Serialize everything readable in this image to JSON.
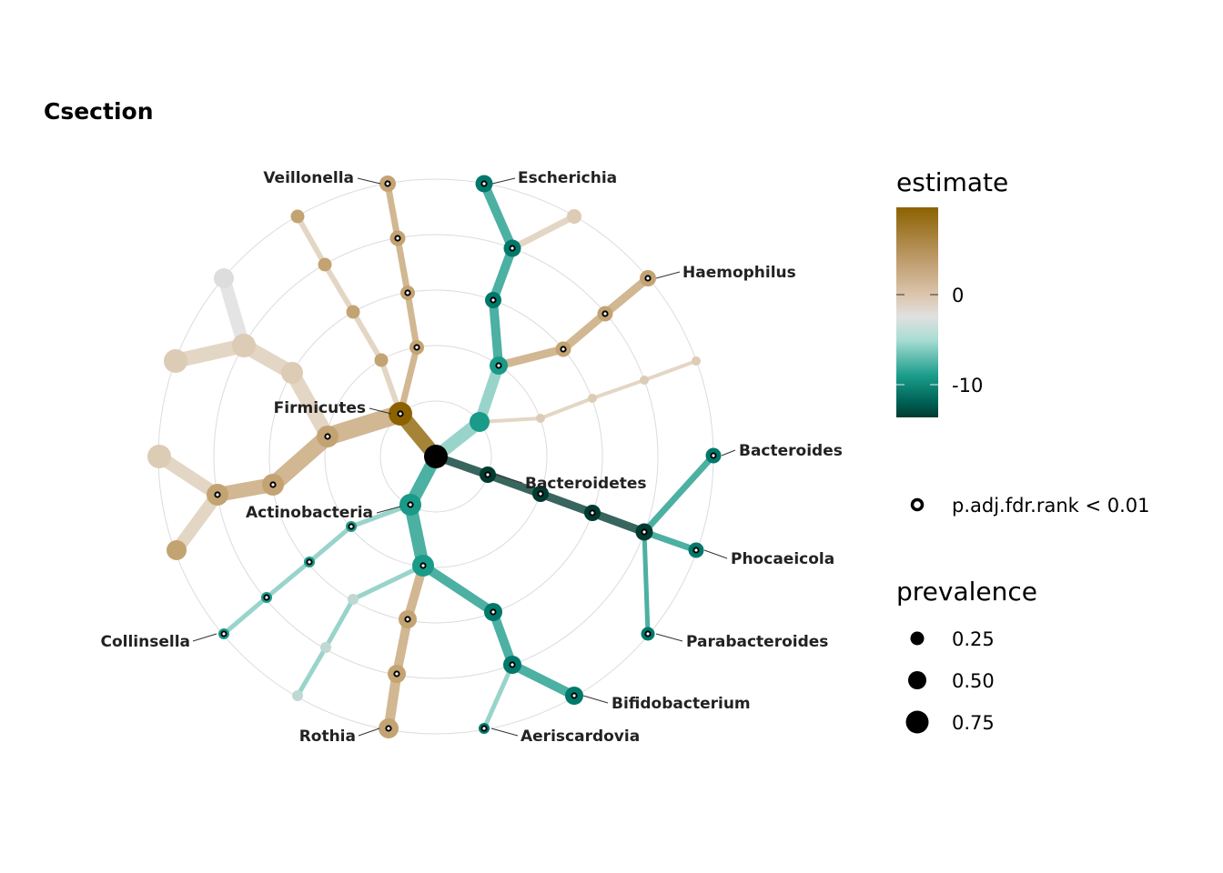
{
  "title": "Csection",
  "colors": {
    "positive_max": "#8c6200",
    "positive_mid": "#c4a373",
    "positive_light": "#dccbb5",
    "zero": "#dedede",
    "negative_light": "#7cc8bc",
    "negative_mid": "#1a9a88",
    "negative_strong": "#00796b",
    "negative_max": "#003a31",
    "root": "#000000"
  },
  "legend": {
    "estimate_title": "estimate",
    "estimate_ticks": [
      "0",
      "-10"
    ],
    "significance_label": "p.adj.fdr.rank < 0.01",
    "prevalence_title": "prevalence",
    "prevalence_values": [
      "0.25",
      "0.50",
      "0.75"
    ]
  },
  "chart_data": {
    "type": "radial-tree",
    "title": "Csection",
    "root": "root",
    "labeled_taxa": [
      {
        "name": "Veillonella",
        "significant": true
      },
      {
        "name": "Escherichia",
        "significant": true
      },
      {
        "name": "Haemophilus",
        "significant": true
      },
      {
        "name": "Firmicutes",
        "significant": true
      },
      {
        "name": "Bacteroides",
        "significant": true
      },
      {
        "name": "Bacteroidetes",
        "significant": true
      },
      {
        "name": "Actinobacteria",
        "significant": true
      },
      {
        "name": "Phocaeicola",
        "significant": true
      },
      {
        "name": "Collinsella",
        "significant": true
      },
      {
        "name": "Parabacteroides",
        "significant": true
      },
      {
        "name": "Bifidobacterium",
        "significant": true
      },
      {
        "name": "Rothia",
        "significant": true
      },
      {
        "name": "Aeriscardovia",
        "significant": true
      }
    ],
    "estimate_scale": {
      "ticks": [
        0,
        -10
      ],
      "min": -13.5,
      "max": 9.5
    },
    "prevalence_scale": [
      0.25,
      0.5,
      0.75
    ],
    "significance_threshold": "p.adj.fdr.rank < 0.01"
  }
}
